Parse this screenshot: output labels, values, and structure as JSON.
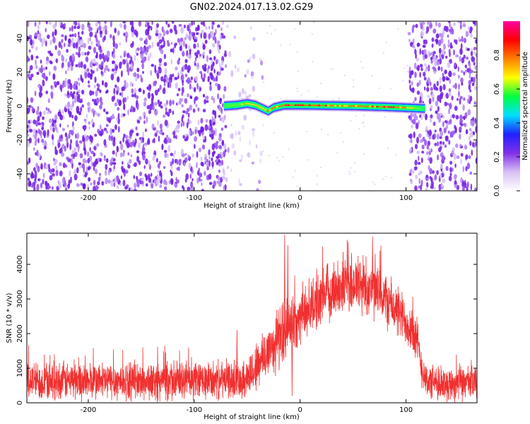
{
  "title": "GN02.2024.017.13.02.G29",
  "colors": {
    "snr_line": "#f03030",
    "spectrogram_noise": "#7a28e8",
    "spectrogram_background": "#ffffff"
  },
  "chart_data": [
    {
      "type": "heatmap",
      "xlabel": "Height of straight line (km)",
      "ylabel": "Frequency (Hz)",
      "xlim": [
        -258,
        167
      ],
      "ylim": [
        -50,
        50
      ],
      "xticks": [
        -200,
        -100,
        0,
        100
      ],
      "xtick_labels": [
        "-200",
        "-100",
        "0",
        "100"
      ],
      "yticks": [
        -40,
        -20,
        0,
        20,
        40
      ],
      "ytick_labels": [
        "-40",
        "-20",
        "0",
        "20",
        "40"
      ],
      "grid": false,
      "colorbar": {
        "label": "Normalized spectral amplitude",
        "range": [
          0,
          1
        ],
        "ticks": [
          0.0,
          0.2,
          0.4,
          0.6,
          0.8
        ],
        "tick_labels": [
          "0.0",
          "0.2",
          "0.4",
          "0.6",
          "0.8"
        ],
        "colormap": [
          "#ffffff",
          "#d8c0f4",
          "#8030e8",
          "#2020ff",
          "#00e0ff",
          "#00ff40",
          "#ffff00",
          "#ff8000",
          "#ff0000",
          "#ff00a0"
        ]
      },
      "noise_regions": [
        {
          "x_range": [
            -258,
            -70
          ],
          "description": "dense noise"
        },
        {
          "x_range": [
            -70,
            -35
          ],
          "description": "sparse noise"
        },
        {
          "x_range": [
            103,
            167
          ],
          "description": "dense noise"
        }
      ],
      "signal_track": {
        "x_range": [
          -72,
          118
        ],
        "frequency": [
          [
            -72,
            0
          ],
          [
            -60,
            0.5
          ],
          [
            -50,
            1.5
          ],
          [
            -42,
            0.5
          ],
          [
            -35,
            -1.5
          ],
          [
            -30,
            -3
          ],
          [
            -25,
            -1
          ],
          [
            -15,
            0.5
          ],
          [
            0,
            0.5
          ],
          [
            20,
            0.3
          ],
          [
            50,
            0
          ],
          [
            80,
            -0.5
          ],
          [
            100,
            -1
          ],
          [
            118,
            -1.5
          ]
        ],
        "amplitude": [
          [
            -72,
            0.35
          ],
          [
            -50,
            0.7
          ],
          [
            -30,
            0.75
          ],
          [
            -15,
            0.85
          ],
          [
            0,
            0.9
          ],
          [
            30,
            0.8
          ],
          [
            60,
            0.82
          ],
          [
            90,
            0.88
          ],
          [
            110,
            0.6
          ],
          [
            118,
            0.35
          ]
        ]
      }
    },
    {
      "type": "line",
      "xlabel": "Height of straight line (km)",
      "ylabel": "SNR (10 * v/v)",
      "xlim": [
        -258,
        167
      ],
      "ylim": [
        0,
        4900
      ],
      "xticks": [
        -200,
        -100,
        0,
        100
      ],
      "xtick_labels": [
        "-200",
        "-100",
        "0",
        "100"
      ],
      "yticks": [
        0,
        1000,
        2000,
        3000,
        4000
      ],
      "ytick_labels": [
        "0",
        "1000",
        "2000",
        "3000",
        "4000"
      ],
      "grid": false,
      "series": [
        {
          "x": [
            -258,
            -240,
            -220,
            -200,
            -180,
            -160,
            -140,
            -120,
            -100,
            -80,
            -60,
            -50,
            -40,
            -30,
            -20,
            -10,
            0,
            10,
            20,
            30,
            40,
            50,
            60,
            70,
            80,
            90,
            100,
            105,
            110,
            115,
            120,
            130,
            140,
            150,
            167
          ],
          "y": [
            650,
            630,
            640,
            620,
            630,
            620,
            610,
            620,
            630,
            640,
            680,
            720,
            1100,
            1500,
            1900,
            2200,
            2500,
            2800,
            3050,
            3250,
            3400,
            3450,
            3400,
            3250,
            3000,
            2700,
            2350,
            2200,
            1800,
            1000,
            600,
            550,
            560,
            550,
            560
          ],
          "spread": [
            650,
            650,
            650,
            650,
            650,
            650,
            650,
            650,
            650,
            650,
            650,
            700,
            900,
            1000,
            1100,
            1000,
            950,
            950,
            950,
            1000,
            1000,
            1100,
            1100,
            1000,
            950,
            900,
            850,
            850,
            900,
            650,
            600,
            600,
            600,
            600,
            600
          ],
          "spikes": [
            [
              -15,
              4850
            ],
            [
              -12,
              4550
            ],
            [
              45,
              4650
            ],
            [
              68,
              4800
            ],
            [
              -60,
              2100
            ],
            [
              -8,
              200
            ]
          ]
        }
      ]
    }
  ]
}
